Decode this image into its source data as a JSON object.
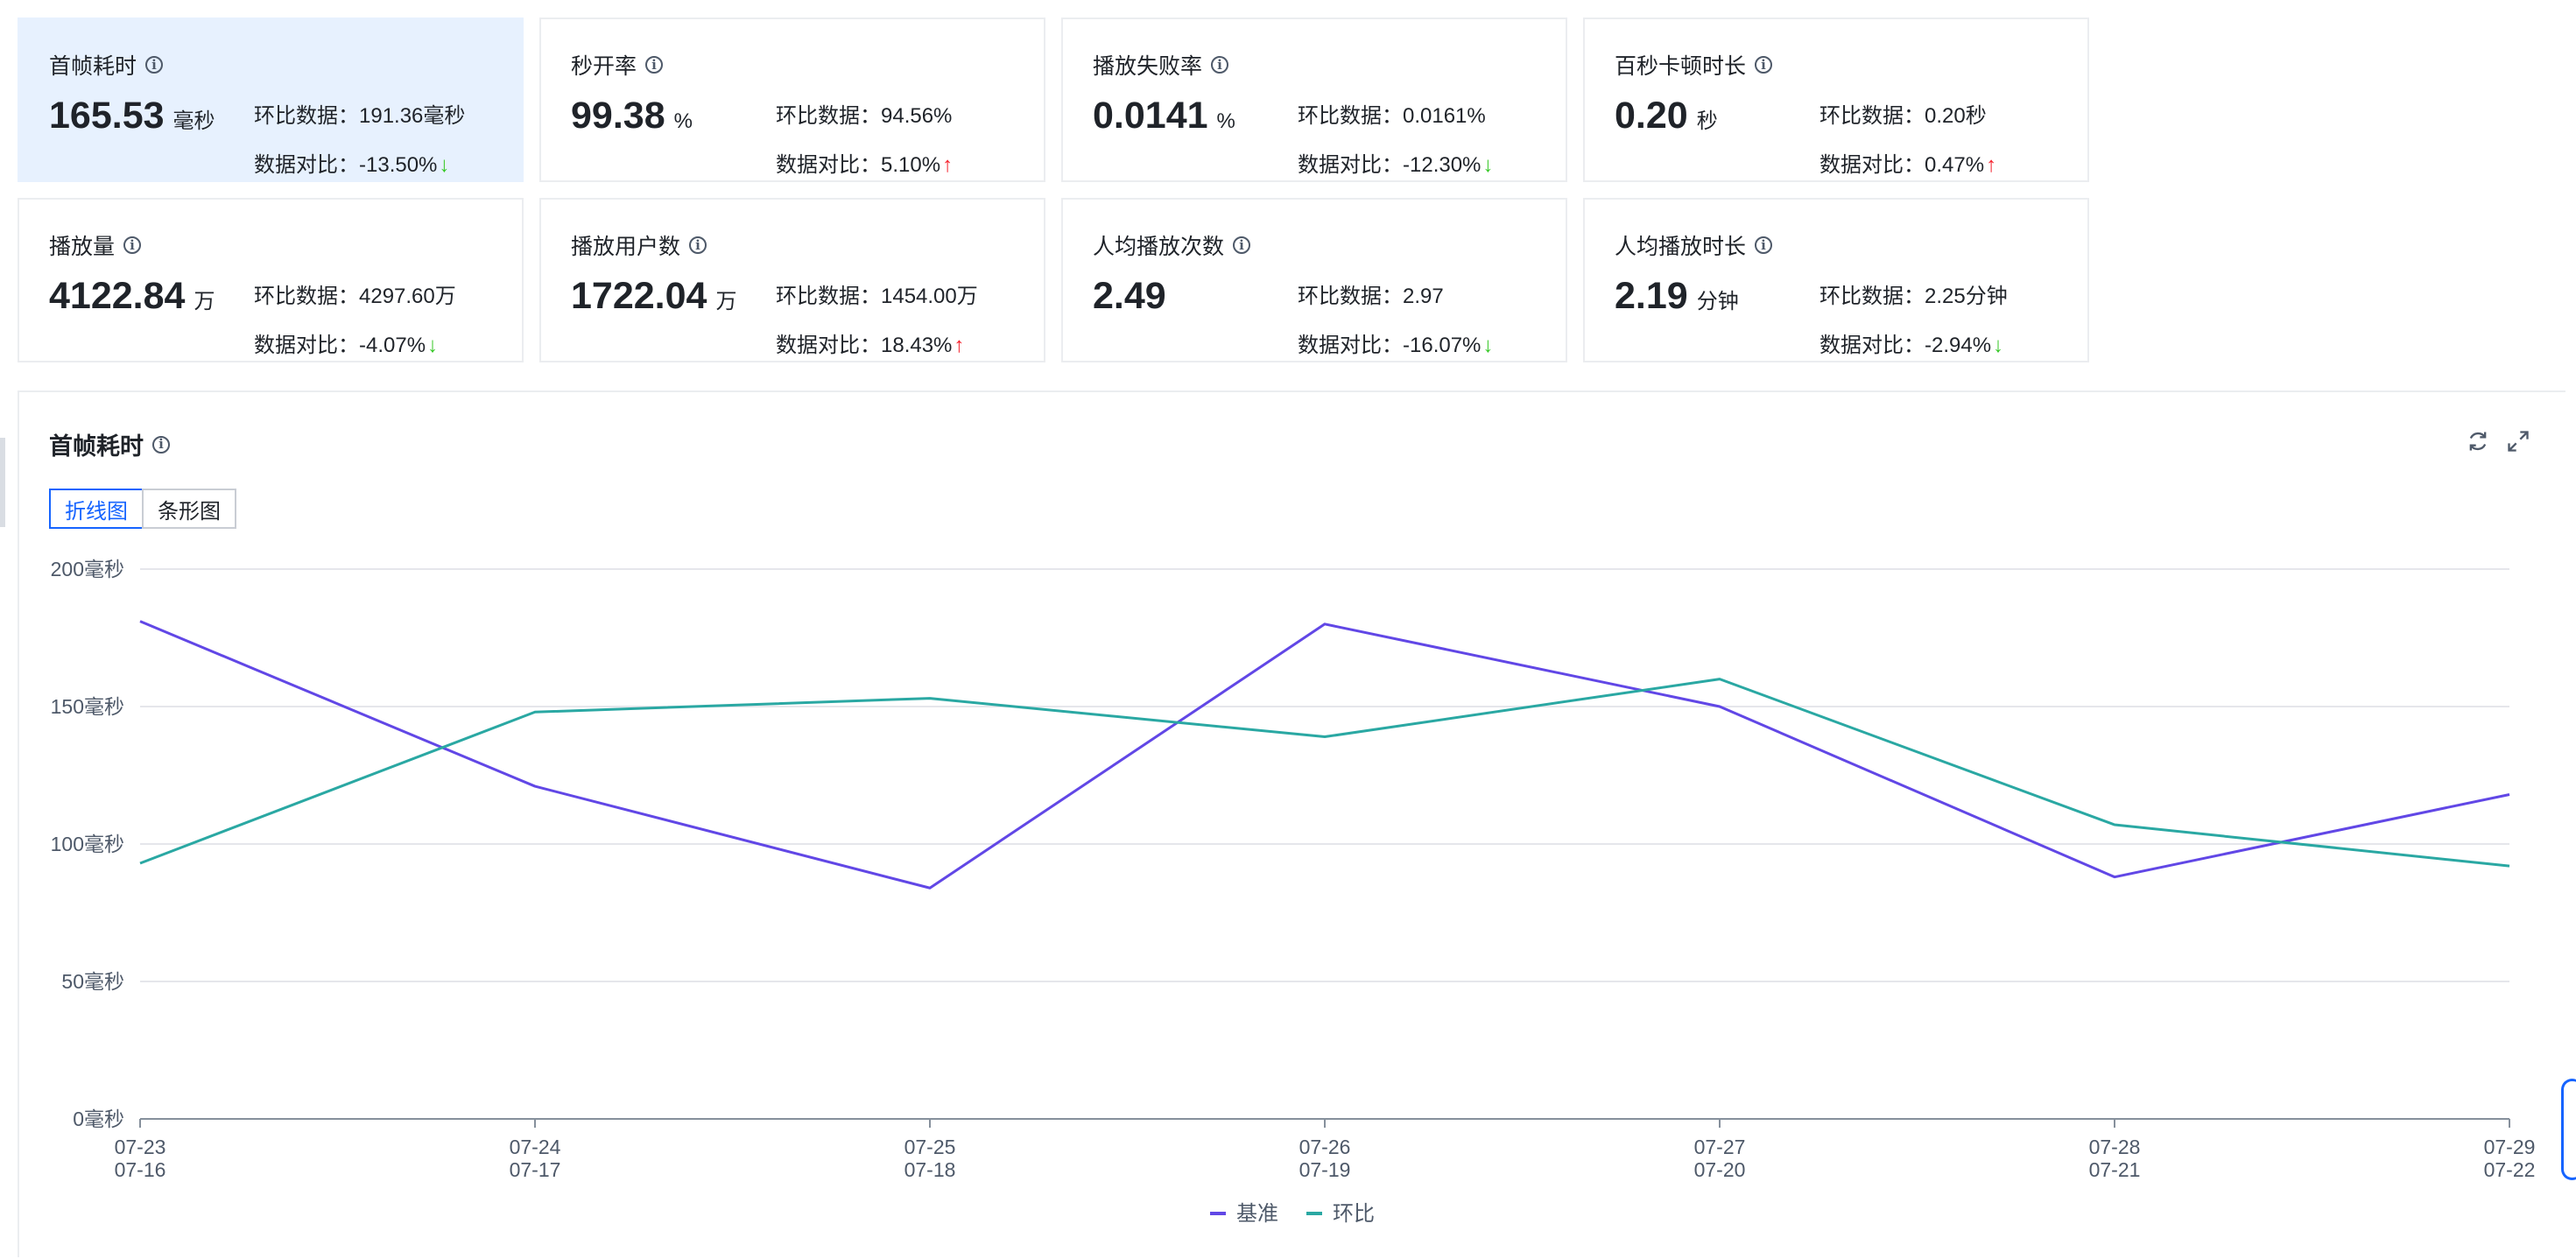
{
  "cards": [
    {
      "title": "首帧耗时",
      "value": "165.53",
      "unit": "毫秒",
      "chain_label": "环比数据：",
      "chain_value": "191.36毫秒",
      "compare_label": "数据对比：",
      "compare_value": "-13.50%",
      "trend": "down",
      "active": true
    },
    {
      "title": "秒开率",
      "value": "99.38",
      "unit": "%",
      "chain_label": "环比数据：",
      "chain_value": "94.56%",
      "compare_label": "数据对比：",
      "compare_value": "5.10%",
      "trend": "up",
      "active": false
    },
    {
      "title": "播放失败率",
      "value": "0.0141",
      "unit": "%",
      "chain_label": "环比数据：",
      "chain_value": "0.0161%",
      "compare_label": "数据对比：",
      "compare_value": "-12.30%",
      "trend": "down",
      "active": false
    },
    {
      "title": "百秒卡顿时长",
      "value": "0.20",
      "unit": "秒",
      "chain_label": "环比数据：",
      "chain_value": "0.20秒",
      "compare_label": "数据对比：",
      "compare_value": "0.47%",
      "trend": "up",
      "active": false
    },
    {
      "title": "播放量",
      "value": "4122.84",
      "unit": "万",
      "chain_label": "环比数据：",
      "chain_value": "4297.60万",
      "compare_label": "数据对比：",
      "compare_value": "-4.07%",
      "trend": "down",
      "active": false
    },
    {
      "title": "播放用户数",
      "value": "1722.04",
      "unit": "万",
      "chain_label": "环比数据：",
      "chain_value": "1454.00万",
      "compare_label": "数据对比：",
      "compare_value": "18.43%",
      "trend": "up",
      "active": false
    },
    {
      "title": "人均播放次数",
      "value": "2.49",
      "unit": "",
      "chain_label": "环比数据：",
      "chain_value": "2.97",
      "compare_label": "数据对比：",
      "compare_value": "-16.07%",
      "trend": "down",
      "active": false
    },
    {
      "title": "人均播放时长",
      "value": "2.19",
      "unit": "分钟",
      "chain_label": "环比数据：",
      "chain_value": "2.25分钟",
      "compare_label": "数据对比：",
      "compare_value": "-2.94%",
      "trend": "down",
      "active": false
    }
  ],
  "arrows": {
    "down": "↓",
    "up": "↑"
  },
  "chart_panel": {
    "title": "首帧耗时",
    "tabs": [
      {
        "label": "折线图",
        "active": true
      },
      {
        "label": "条形图",
        "active": false
      }
    ],
    "icons": {
      "refresh": "refresh-icon",
      "fullscreen": "fullscreen-icon",
      "info": "info-icon"
    }
  },
  "chart_data": {
    "type": "line",
    "x": [
      "07-23",
      "07-24",
      "07-25",
      "07-26",
      "07-27",
      "07-28",
      "07-29"
    ],
    "x_secondary": [
      "07-16",
      "07-17",
      "07-18",
      "07-19",
      "07-20",
      "07-21",
      "07-22"
    ],
    "series": [
      {
        "name": "基准",
        "color": "#6147e6",
        "values": [
          181,
          121,
          84,
          180,
          150,
          88,
          118
        ]
      },
      {
        "name": "环比",
        "color": "#2aa8a3",
        "values": [
          93,
          148,
          153,
          139,
          160,
          107,
          92
        ]
      }
    ],
    "ylim": [
      0,
      200
    ],
    "yticks": [
      0,
      50,
      100,
      150,
      200
    ],
    "ytick_unit": "毫秒",
    "grid": true,
    "legend": "bottom-center"
  }
}
